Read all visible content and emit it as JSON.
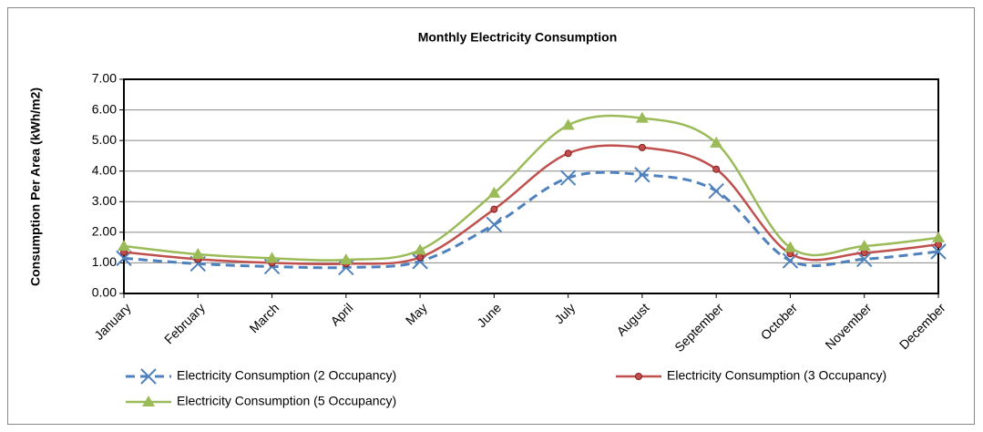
{
  "chart_data": {
    "type": "line",
    "title": "Monthly Electricity Consumption",
    "y_label": "Consumption Per Area (kWh/m2)",
    "categories": [
      "January",
      "February",
      "March",
      "April",
      "May",
      "June",
      "July",
      "August",
      "September",
      "October",
      "November",
      "December"
    ],
    "series": [
      {
        "name": "Electricity Consumption (2 Occupancy)",
        "color": "#4f81bd",
        "dash": true,
        "marker": "x",
        "values": [
          1.15,
          0.97,
          0.88,
          0.85,
          1.05,
          2.25,
          3.78,
          3.88,
          3.35,
          1.07,
          1.12,
          1.37
        ]
      },
      {
        "name": "Electricity Consumption (3 Occupancy)",
        "color": "#c0504d",
        "dash": false,
        "marker": "circle",
        "values": [
          1.35,
          1.12,
          1.0,
          0.97,
          1.18,
          2.75,
          4.58,
          4.77,
          4.06,
          1.3,
          1.33,
          1.6
        ]
      },
      {
        "name": "Electricity Consumption (5 Occupancy)",
        "color": "#9bbb59",
        "dash": false,
        "marker": "triangle",
        "values": [
          1.55,
          1.28,
          1.15,
          1.1,
          1.42,
          3.28,
          5.5,
          5.73,
          4.92,
          1.5,
          1.55,
          1.82
        ]
      }
    ],
    "ylim": [
      0,
      7
    ],
    "yticks": [
      {
        "value": 0,
        "label": "0.00"
      },
      {
        "value": 1,
        "label": "1.00"
      },
      {
        "value": 2,
        "label": "2.00"
      },
      {
        "value": 3,
        "label": "3.00"
      },
      {
        "value": 4,
        "label": "4.00"
      },
      {
        "value": 5,
        "label": "5.00"
      },
      {
        "value": 6,
        "label": "6.00"
      },
      {
        "value": 7,
        "label": "7.00"
      }
    ],
    "grid": true,
    "smooth": true
  }
}
